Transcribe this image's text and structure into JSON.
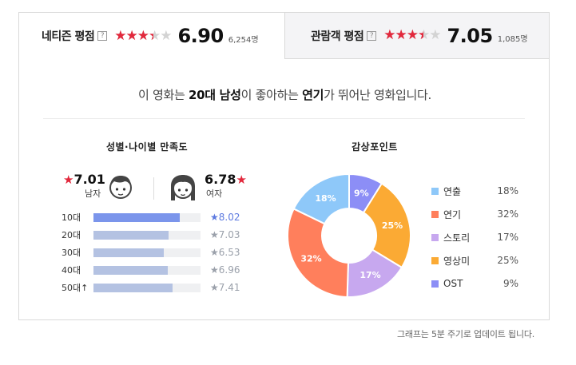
{
  "tabs": {
    "netizen": {
      "title": "네티즌 평점",
      "help": "?",
      "score": "6.90",
      "score_value": 6.9,
      "count": "6,254명"
    },
    "audience": {
      "title": "관람객 평점",
      "help": "?",
      "score": "7.05",
      "score_value": 7.05,
      "count": "1,085명"
    }
  },
  "summary": {
    "prefix": "이 영화는 ",
    "group": "20대 남성",
    "mid": "이 좋아하는 ",
    "point": "연기",
    "suffix": "가 뛰어난 영화입니다."
  },
  "gender_age": {
    "title": "성별·나이별 만족도",
    "male": {
      "score": "7.01",
      "label": "남자"
    },
    "female": {
      "score": "6.78",
      "label": "여자"
    },
    "ages": [
      {
        "label": "10대",
        "score": "8.02",
        "value": 8.02,
        "top": true
      },
      {
        "label": "20대",
        "score": "7.03",
        "value": 7.03,
        "top": false
      },
      {
        "label": "30대",
        "score": "6.53",
        "value": 6.53,
        "top": false
      },
      {
        "label": "40대",
        "score": "6.96",
        "value": 6.96,
        "top": false
      },
      {
        "label": "50대↑",
        "score": "7.41",
        "value": 7.41,
        "top": false
      }
    ]
  },
  "viewing_points": {
    "title": "감상포인트",
    "items": [
      {
        "name": "연출",
        "pct": "18%",
        "value": 18,
        "color": "#8ec8f9"
      },
      {
        "name": "연기",
        "pct": "32%",
        "value": 32,
        "color": "#ff7f5c"
      },
      {
        "name": "스토리",
        "pct": "17%",
        "value": 17,
        "color": "#c7a8ef"
      },
      {
        "name": "영상미",
        "pct": "25%",
        "value": 25,
        "color": "#fbaa34"
      },
      {
        "name": "OST",
        "pct": "9%",
        "value": 9,
        "color": "#8c8ef6"
      }
    ]
  },
  "footnote": "그래프는 5분 주기로 업데이트 됩니다."
}
